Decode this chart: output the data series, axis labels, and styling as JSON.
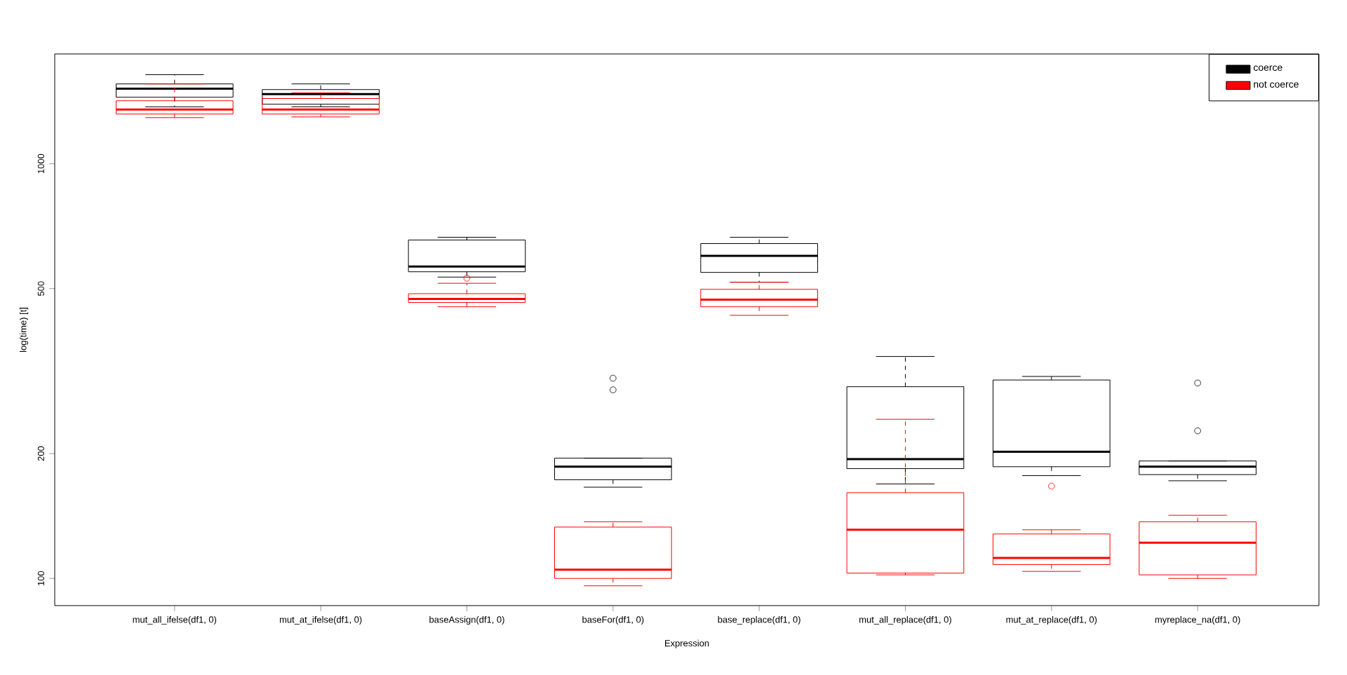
{
  "chart_data": {
    "type": "box",
    "xlabel": "Expression",
    "ylabel": "log(time) [t]",
    "categories": [
      "mut_all_ifelse(df1, 0)",
      "mut_at_ifelse(df1, 0)",
      "baseAssign(df1, 0)",
      "baseFor(df1, 0)",
      "base_replace(df1, 0)",
      "mut_all_replace(df1, 0)",
      "mut_at_replace(df1, 0)",
      "myreplace_na(df1, 0)"
    ],
    "log": true,
    "ylim": [
      86,
      1840
    ],
    "yticks": [
      100,
      200,
      500,
      1000
    ],
    "legend": "top right",
    "series": [
      {
        "name": "coerce",
        "color": "#000000",
        "boxes": [
          {
            "low": 1372,
            "q1": 1447,
            "median": 1518,
            "q3": 1558,
            "high": 1640
          },
          {
            "low": 1372,
            "q1": 1392,
            "median": 1472,
            "q3": 1510,
            "high": 1558
          },
          {
            "low": 533,
            "q1": 549,
            "median": 565,
            "q3": 655,
            "high": 665
          },
          {
            "low": 166,
            "q1": 173,
            "median": 186,
            "q3": 195,
            "high": 195,
            "outliers": [
              304,
              285
            ]
          },
          {
            "low": 518,
            "q1": 547,
            "median": 600,
            "q3": 642,
            "high": 665
          },
          {
            "low": 169,
            "q1": 184,
            "median": 194,
            "q3": 290,
            "high": 343
          },
          {
            "low": 177,
            "q1": 186,
            "median": 202,
            "q3": 301,
            "high": 307
          },
          {
            "low": 172,
            "q1": 178,
            "median": 186,
            "q3": 192,
            "high": 192,
            "outliers": [
              296,
              227
            ]
          }
        ]
      },
      {
        "name": "not coerce",
        "color": "#ff0000",
        "boxes": [
          {
            "low": 1292,
            "q1": 1318,
            "median": 1352,
            "q3": 1419,
            "high": 1558
          },
          {
            "low": 1297,
            "q1": 1318,
            "median": 1352,
            "q3": 1437,
            "high": 1483
          },
          {
            "low": 452,
            "q1": 463,
            "median": 472,
            "q3": 486,
            "high": 515,
            "outliers": [
              530
            ]
          },
          {
            "low": 96,
            "q1": 100,
            "median": 105,
            "q3": 133,
            "high": 137
          },
          {
            "low": 431,
            "q1": 452,
            "median": 470,
            "q3": 498,
            "high": 518
          },
          {
            "low": 102,
            "q1": 103,
            "median": 131,
            "q3": 161,
            "high": 242
          },
          {
            "low": 104,
            "q1": 108,
            "median": 112,
            "q3": 128,
            "high": 131,
            "outliers": [
              167
            ]
          },
          {
            "low": 100,
            "q1": 102,
            "median": 122,
            "q3": 137,
            "high": 142
          }
        ]
      }
    ]
  }
}
